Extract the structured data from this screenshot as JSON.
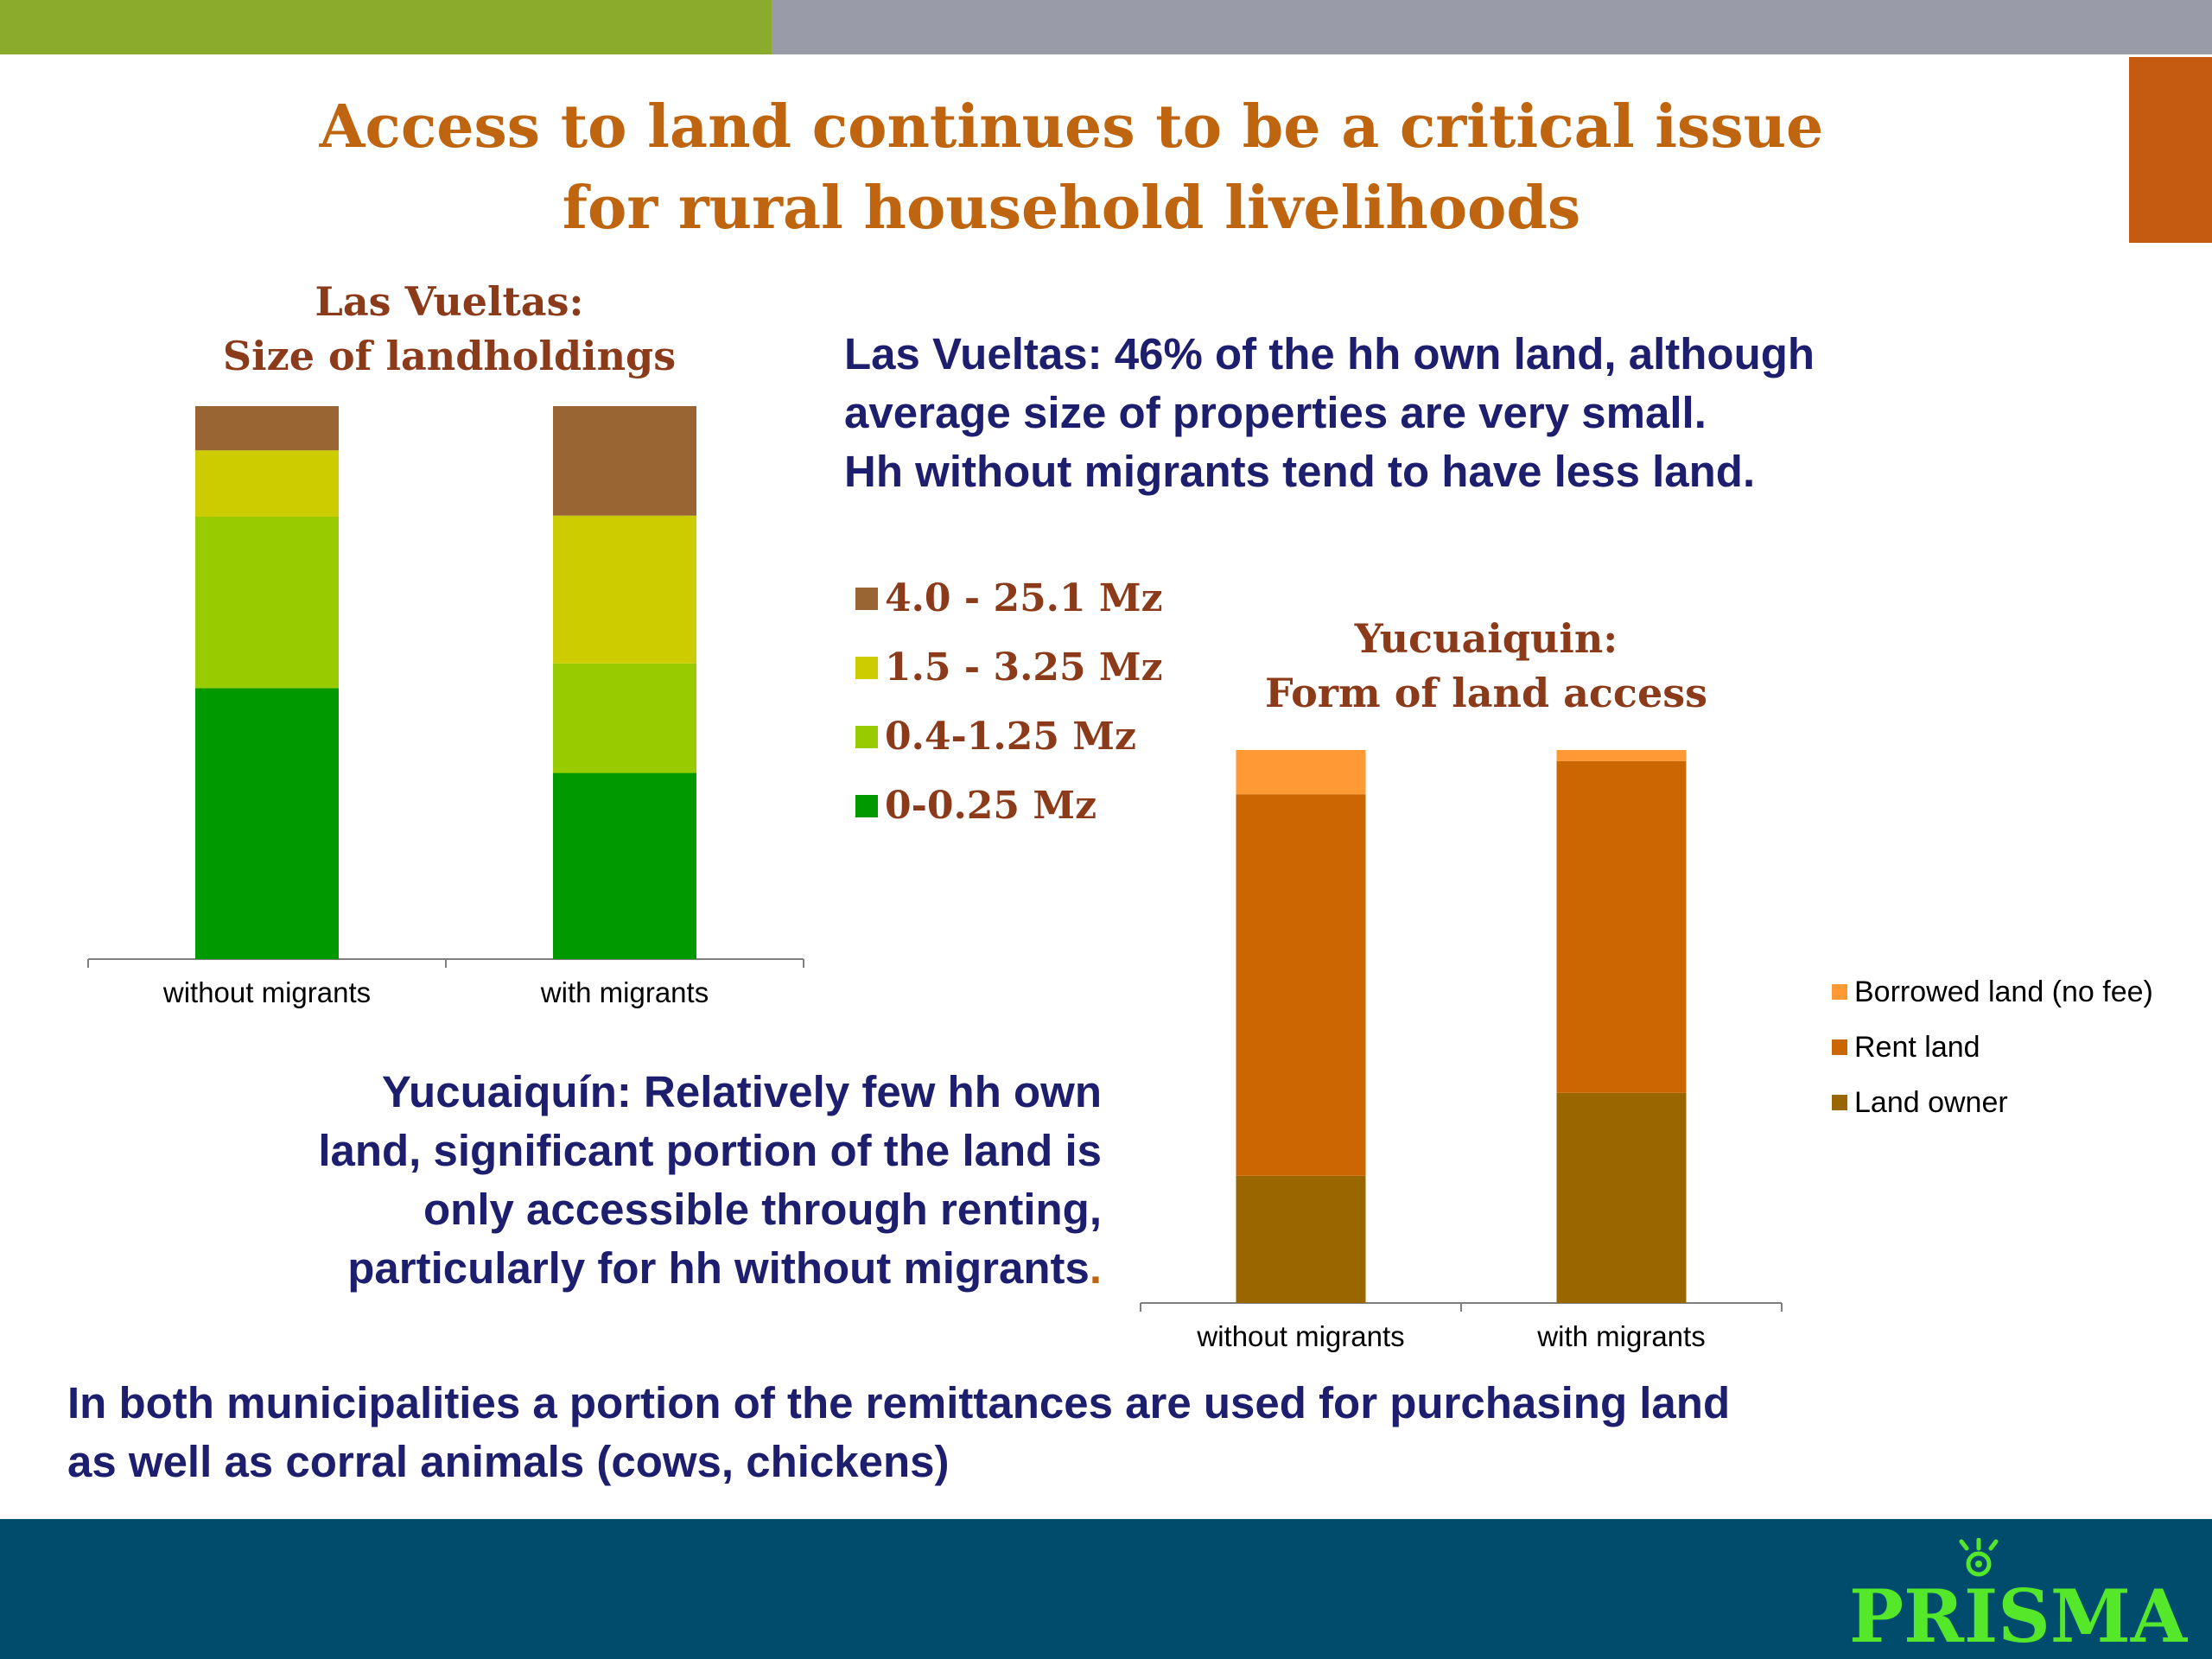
{
  "slide": {
    "title_line1": "Access to land continues to be a critical issue",
    "title_line2": "for rural household livelihoods",
    "lasvueltas_text": [
      "Las Vueltas: 46% of the hh own land, although",
      "average size of properties are very small.",
      "Hh without migrants tend to have less land."
    ],
    "yucuaiquin_text": [
      "Yucuaiquín: Relatively few hh own",
      "land, significant portion of the land is",
      "only accessible through renting,",
      "particularly for hh without migrants"
    ],
    "yucuaiquin_text_end": ".",
    "bottom_text": [
      "In both municipalities a portion of the remittances are used for purchasing land",
      "as well as corral animals (cows, chickens)"
    ],
    "logo_text": "PRISMA",
    "colors": {
      "title": "#c0650f",
      "body_text": "#1e1e6e",
      "topbar_green": "#8aab2c",
      "topbar_gray": "#999ca8",
      "footer": "#004c6d",
      "logo": "#55e82a"
    }
  },
  "chart_data": [
    {
      "type": "bar",
      "stacked": true,
      "percent": true,
      "title_line1": "Las Vueltas:",
      "title_line2": "Size of landholdings",
      "categories": [
        "without migrants",
        "with migrants"
      ],
      "series": [
        {
          "name": "0-0.25 Mz",
          "color": "#009900",
          "values": [
            49,
            34
          ]
        },
        {
          "name": "0.4-1.25 Mz",
          "color": "#99cc00",
          "values": [
            31,
            20
          ]
        },
        {
          "name": "1.5 - 3.25 Mz",
          "color": "#cccc00",
          "values": [
            12,
            27
          ]
        },
        {
          "name": "4.0 - 25.1 Mz",
          "color": "#996633",
          "values": [
            8,
            20
          ]
        }
      ],
      "legend_position": "right",
      "ylim": [
        0,
        100
      ],
      "grid": false
    },
    {
      "type": "bar",
      "stacked": true,
      "percent": true,
      "title_line1": "Yucuaiquin:",
      "title_line2": "Form of land access",
      "categories": [
        "without migrants",
        "with migrants"
      ],
      "series": [
        {
          "name": "Land owner",
          "color": "#996600",
          "values": [
            23,
            38
          ]
        },
        {
          "name": "Rent land",
          "color": "#cc6600",
          "values": [
            69,
            60
          ]
        },
        {
          "name": "Borrowed land (no fee)",
          "color": "#ff9933",
          "values": [
            8,
            2
          ]
        }
      ],
      "legend_position": "right",
      "ylim": [
        0,
        100
      ],
      "grid": false
    }
  ]
}
